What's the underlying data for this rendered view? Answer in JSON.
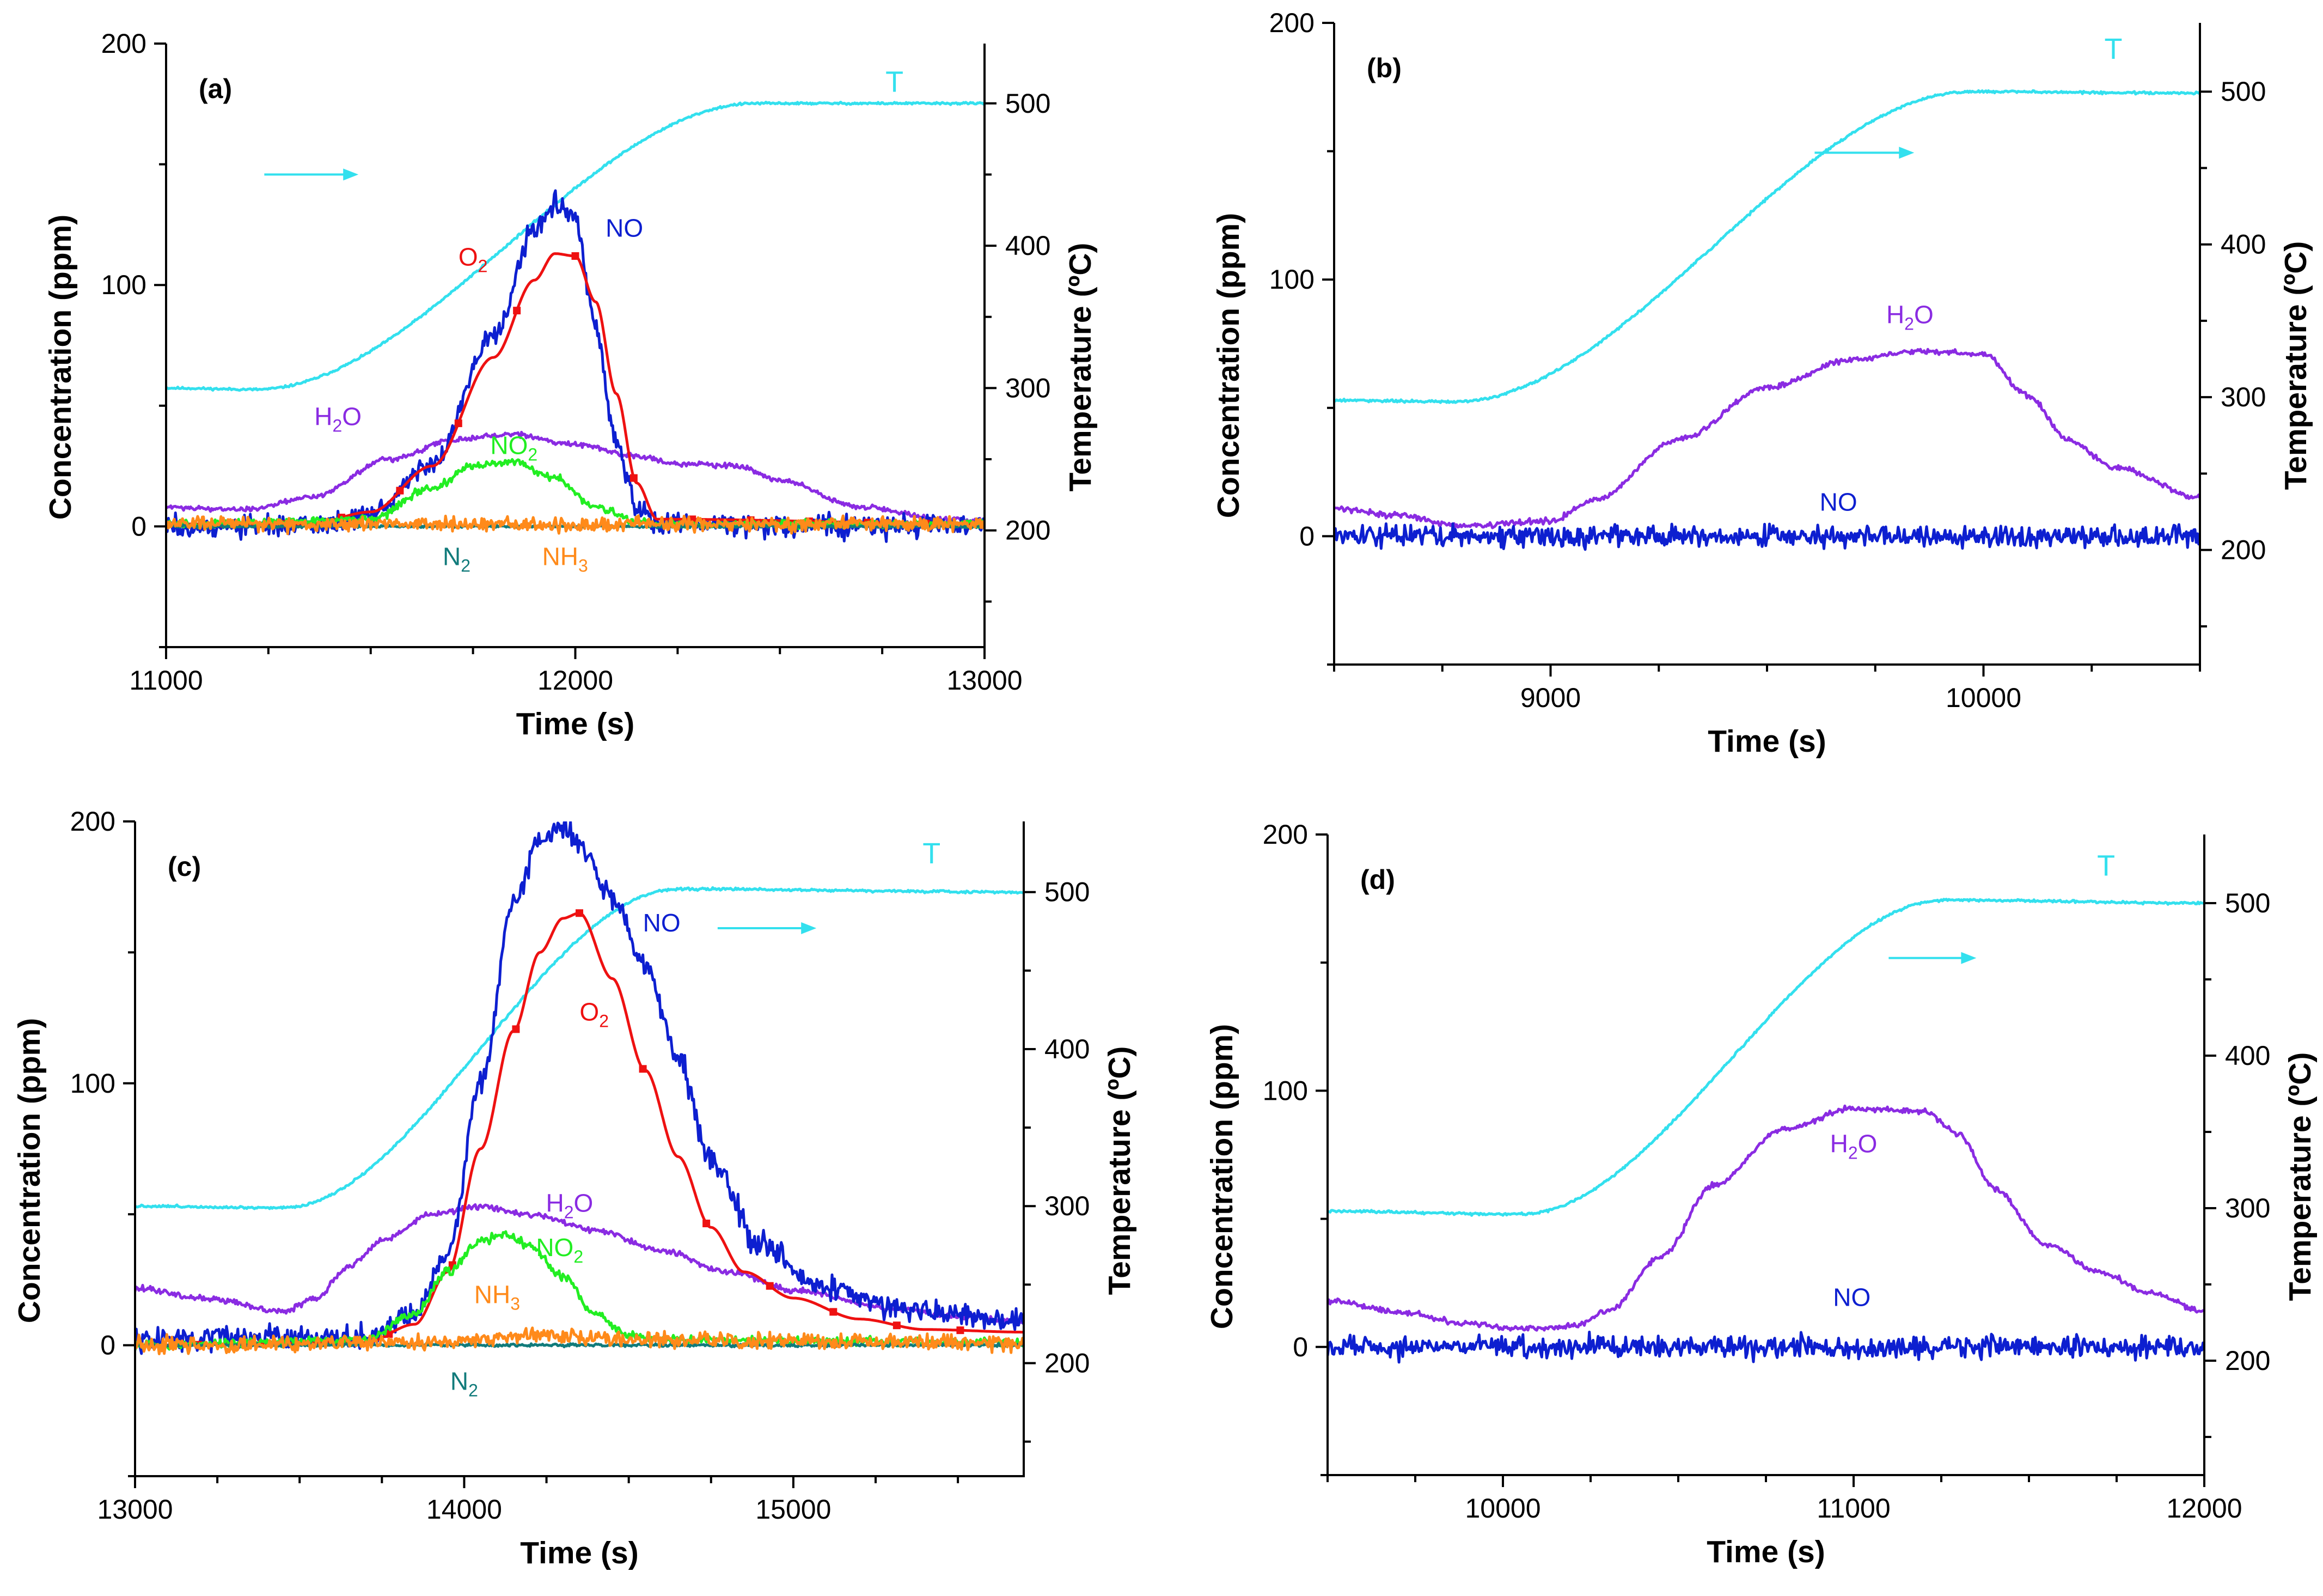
{
  "chart_data": [
    {
      "panel": "(a)",
      "type": "line",
      "xlabel": "Time (s)",
      "ylabel": "Concentration (ppm)",
      "y2label": "Temperature (ºC)",
      "xlim": [
        11000,
        13000
      ],
      "ylim": [
        -50,
        200
      ],
      "y2lim": [
        118,
        542
      ],
      "xticks": [
        11000,
        12000,
        13000
      ],
      "yticks": [
        0,
        100,
        200
      ],
      "y2ticks": [
        200,
        300,
        400,
        500
      ],
      "x_minor_step": 250,
      "y_minor_step": 50,
      "y2_minor_step": 50,
      "arrow": {
        "x1": 11240,
        "x2": 11470,
        "y": 450
      },
      "series": [
        {
          "name": "T",
          "axis": "y2",
          "color": "#33e0ee",
          "noise": 0.6,
          "x": [
            11000,
            11220,
            12440,
            13000
          ],
          "y": [
            300,
            299,
            500,
            500
          ]
        },
        {
          "name": "H2O",
          "axis": "y",
          "color": "#8a2be2",
          "noise": 0.8,
          "x": [
            11000,
            11200,
            11350,
            11550,
            11700,
            11850,
            12000,
            12150,
            12250,
            12400,
            12500,
            12700,
            12900,
            13000
          ],
          "y": [
            8,
            7,
            12,
            28,
            36,
            38,
            34,
            29,
            26,
            25,
            19,
            8,
            3,
            2
          ]
        },
        {
          "name": "NO",
          "axis": "y",
          "color": "#0d1fd0",
          "noise": 3.5,
          "x": [
            11000,
            11350,
            11500,
            11650,
            11800,
            11900,
            11950,
            12000,
            12050,
            12100,
            12150,
            12200,
            13000
          ],
          "y": [
            0,
            0,
            4,
            26,
            78,
            122,
            133,
            128,
            82,
            35,
            8,
            1,
            0
          ]
        },
        {
          "name": "O2",
          "axis": "y",
          "color": "#ee1111",
          "noise": 0,
          "markers": true,
          "marker_step": 4,
          "x": [
            11000,
            11350,
            11500,
            11650,
            11800,
            11900,
            11950,
            12000,
            12050,
            12100,
            12150,
            12200,
            13000
          ],
          "y": [
            1,
            1,
            6,
            25,
            70,
            102,
            113,
            112,
            93,
            55,
            18,
            3,
            1
          ]
        },
        {
          "name": "NO2",
          "axis": "y",
          "color": "#22ee22",
          "noise": 1.2,
          "x": [
            11000,
            11500,
            11650,
            11750,
            11850,
            11950,
            12050,
            12150,
            12200,
            13000
          ],
          "y": [
            1,
            3,
            16,
            25,
            27,
            20,
            8,
            2,
            1,
            1
          ]
        },
        {
          "name": "N2",
          "axis": "y",
          "color": "#117b7b",
          "noise": 0.4,
          "x": [
            11000,
            13000
          ],
          "y": [
            0,
            0
          ]
        },
        {
          "name": "NH3",
          "axis": "y",
          "color": "#ff8a1a",
          "noise": 2.2,
          "x": [
            11000,
            13000
          ],
          "y": [
            1,
            1
          ]
        }
      ],
      "annotations": [
        {
          "text": "T",
          "x": 12780,
          "y": 180,
          "color": "#33e0ee",
          "big": true
        },
        {
          "text": "NO",
          "x": 12120,
          "y": 120,
          "color": "#0d1fd0"
        },
        {
          "text": "O",
          "sub": "2",
          "x": 11750,
          "y": 108,
          "color": "#ee1111"
        },
        {
          "text": "H",
          "sub": "2",
          "tail": "O",
          "x": 11420,
          "y": 42,
          "color": "#8a2be2"
        },
        {
          "text": "NO",
          "sub": "2",
          "x": 11850,
          "y": 30,
          "color": "#22ee22"
        },
        {
          "text": "N",
          "sub": "2",
          "x": 11710,
          "y": -16,
          "color": "#117b7b"
        },
        {
          "text": "NH",
          "sub": "3",
          "x": 11975,
          "y": -16,
          "color": "#ff8a1a"
        }
      ]
    },
    {
      "panel": "(b)",
      "type": "line",
      "xlabel": "Time (s)",
      "ylabel": "Concentration (ppm)",
      "y2label": "Temperature (ºC)",
      "xlim": [
        8500,
        10500
      ],
      "ylim": [
        -50,
        200
      ],
      "y2lim": [
        125,
        545
      ],
      "xticks": [
        9000,
        10000
      ],
      "yticks": [
        0,
        100,
        200
      ],
      "y2ticks": [
        200,
        300,
        400,
        500
      ],
      "x_minor_step": 250,
      "y_minor_step": 50,
      "y2_minor_step": 50,
      "arrow": {
        "x1": 9610,
        "x2": 9840,
        "y": 460
      },
      "series": [
        {
          "name": "T",
          "axis": "y2",
          "color": "#33e0ee",
          "noise": 0.6,
          "x": [
            8500,
            8780,
            9970,
            10500
          ],
          "y": [
            298,
            297,
            500,
            499
          ]
        },
        {
          "name": "H2O",
          "axis": "y",
          "color": "#8a2be2",
          "noise": 0.8,
          "x": [
            8500,
            8650,
            8800,
            9000,
            9100,
            9300,
            9500,
            9700,
            9850,
            10000,
            10100,
            10200,
            10300,
            10500
          ],
          "y": [
            11,
            8,
            4,
            6,
            14,
            38,
            58,
            69,
            72,
            71,
            55,
            37,
            27,
            15
          ]
        },
        {
          "name": "NO",
          "axis": "y",
          "color": "#0d1fd0",
          "noise": 3.2,
          "x": [
            8500,
            10500
          ],
          "y": [
            0,
            0
          ]
        }
      ],
      "annotations": [
        {
          "text": "T",
          "x": 10300,
          "y": 186,
          "color": "#33e0ee",
          "big": true
        },
        {
          "text": "H",
          "sub": "2",
          "tail": "O",
          "x": 9830,
          "y": 83,
          "color": "#8a2be2"
        },
        {
          "text": "NO",
          "x": 9665,
          "y": 10,
          "color": "#0d1fd0"
        }
      ]
    },
    {
      "panel": "(c)",
      "type": "line",
      "xlabel": "Time (s)",
      "ylabel": "Concentration (ppm)",
      "y2label": "Temperature (ºC)",
      "xlim": [
        13000,
        15700
      ],
      "ylim": [
        -50,
        200
      ],
      "y2lim": [
        128,
        545
      ],
      "xticks": [
        13000,
        14000,
        15000
      ],
      "yticks": [
        0,
        100,
        200
      ],
      "y2ticks": [
        200,
        300,
        400,
        500
      ],
      "x_minor_step": 250,
      "y_minor_step": 50,
      "y2_minor_step": 50,
      "arrow": {
        "x1": 14770,
        "x2": 15070,
        "y": 477
      },
      "series": [
        {
          "name": "T",
          "axis": "y2",
          "color": "#33e0ee",
          "noise": 0.6,
          "x": [
            13000,
            13450,
            14650,
            15700
          ],
          "y": [
            300,
            299,
            502,
            500
          ]
        },
        {
          "name": "H2O",
          "axis": "y",
          "color": "#8a2be2",
          "noise": 0.8,
          "x": [
            13000,
            13200,
            13450,
            13550,
            13650,
            13750,
            13900,
            14050,
            14200,
            14400,
            14600,
            14800,
            15000,
            15300,
            15500,
            15700
          ],
          "y": [
            22,
            18,
            13,
            18,
            30,
            40,
            50,
            53,
            50,
            44,
            36,
            28,
            21,
            14,
            11,
            9
          ]
        },
        {
          "name": "NO",
          "axis": "y",
          "color": "#0d1fd0",
          "noise": 3.5,
          "x": [
            13000,
            13700,
            13850,
            13950,
            14050,
            14150,
            14230,
            14300,
            14350,
            14450,
            14550,
            14650,
            14750,
            14900,
            15100,
            15300,
            15500,
            15700
          ],
          "y": [
            2,
            3,
            12,
            35,
            100,
            170,
            193,
            198,
            192,
            170,
            145,
            110,
            70,
            38,
            22,
            15,
            12,
            10
          ]
        },
        {
          "name": "O2",
          "axis": "y",
          "color": "#ee1111",
          "noise": 0,
          "markers": true,
          "marker_step": 4,
          "x": [
            13000,
            13700,
            13850,
            13950,
            14050,
            14150,
            14230,
            14300,
            14350,
            14450,
            14550,
            14650,
            14750,
            14850,
            15000,
            15200,
            15400,
            15700
          ],
          "y": [
            0,
            1,
            8,
            28,
            75,
            120,
            150,
            163,
            165,
            140,
            105,
            72,
            45,
            28,
            18,
            10,
            6,
            5
          ]
        },
        {
          "name": "NO2",
          "axis": "y",
          "color": "#22ee22",
          "noise": 1.2,
          "x": [
            13000,
            13700,
            13850,
            13950,
            14050,
            14130,
            14200,
            14300,
            14400,
            14500,
            14600,
            15700
          ],
          "y": [
            0,
            2,
            12,
            28,
            40,
            42,
            38,
            26,
            12,
            4,
            2,
            1
          ]
        },
        {
          "name": "N2",
          "axis": "y",
          "color": "#117b7b",
          "noise": 0.4,
          "x": [
            13000,
            15700
          ],
          "y": [
            0,
            0
          ]
        },
        {
          "name": "NH3",
          "axis": "y",
          "color": "#ff8a1a",
          "noise": 2.4,
          "x": [
            13000,
            13900,
            14250,
            14500,
            15700
          ],
          "y": [
            0,
            1,
            4,
            2,
            1
          ]
        }
      ],
      "annotations": [
        {
          "text": "T",
          "x": 15420,
          "y": 184,
          "color": "#33e0ee",
          "big": true
        },
        {
          "text": "NO",
          "x": 14600,
          "y": 158,
          "color": "#0d1fd0"
        },
        {
          "text": "O",
          "sub": "2",
          "x": 14395,
          "y": 124,
          "color": "#ee1111"
        },
        {
          "text": "H",
          "sub": "2",
          "tail": "O",
          "x": 14320,
          "y": 51,
          "color": "#8a2be2"
        },
        {
          "text": "NO",
          "sub": "2",
          "x": 14290,
          "y": 34,
          "color": "#22ee22"
        },
        {
          "text": "NH",
          "sub": "3",
          "x": 14100,
          "y": 16,
          "color": "#ff8a1a"
        },
        {
          "text": "N",
          "sub": "2",
          "x": 14000,
          "y": -17,
          "color": "#117b7b"
        }
      ]
    },
    {
      "panel": "(d)",
      "type": "line",
      "xlabel": "Time (s)",
      "ylabel": "Concentration (ppm)",
      "y2label": "Temperature (ºC)",
      "xlim": [
        9500,
        12000
      ],
      "ylim": [
        -50,
        200
      ],
      "y2lim": [
        125,
        545
      ],
      "xticks": [
        10000,
        11000,
        12000
      ],
      "yticks": [
        0,
        100,
        200
      ],
      "y2ticks": [
        200,
        300,
        400,
        500
      ],
      "x_minor_step": 250,
      "y_minor_step": 50,
      "y2_minor_step": 50,
      "arrow": {
        "x1": 11100,
        "x2": 11350,
        "y": 464
      },
      "series": [
        {
          "name": "T",
          "axis": "y2",
          "color": "#33e0ee",
          "noise": 0.6,
          "x": [
            9500,
            10050,
            11260,
            12000
          ],
          "y": [
            298,
            296,
            502,
            500
          ]
        },
        {
          "name": "H2O",
          "axis": "y",
          "color": "#8a2be2",
          "noise": 0.8,
          "x": [
            9500,
            9700,
            9900,
            10050,
            10200,
            10300,
            10450,
            10600,
            10800,
            11000,
            11200,
            11300,
            11400,
            11550,
            11700,
            11850,
            12000
          ],
          "y": [
            18,
            14,
            9,
            7,
            8,
            14,
            35,
            63,
            85,
            93,
            92,
            83,
            62,
            40,
            29,
            21,
            14
          ]
        },
        {
          "name": "NO",
          "axis": "y",
          "color": "#0d1fd0",
          "noise": 3.2,
          "x": [
            9500,
            12000
          ],
          "y": [
            0,
            0
          ]
        }
      ],
      "annotations": [
        {
          "text": "T",
          "x": 11720,
          "y": 184,
          "color": "#33e0ee",
          "big": true
        },
        {
          "text": "H",
          "sub": "2",
          "tail": "O",
          "x": 11000,
          "y": 76,
          "color": "#8a2be2"
        },
        {
          "text": "NO",
          "x": 10995,
          "y": 16,
          "color": "#0d1fd0"
        }
      ]
    }
  ]
}
